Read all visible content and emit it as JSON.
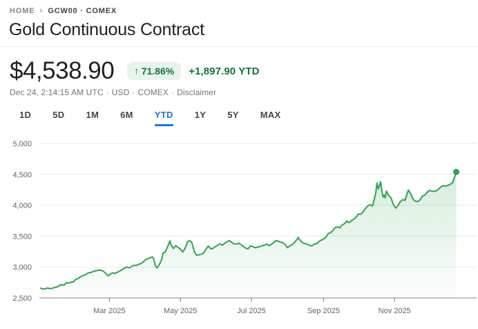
{
  "breadcrumb": {
    "home": "HOME",
    "chevron": "›",
    "symbol": "GCW00 · COMEX"
  },
  "title": "Gold Continuous Contract",
  "quote": {
    "price": "$4,538.90",
    "arrow": "↑",
    "percent_change": "71.86%",
    "absolute_change": "+1,897.90 YTD"
  },
  "meta": {
    "datetime": "Dec 24, 2:14:15 AM UTC",
    "separator": "·",
    "currency": "USD",
    "exchange": "COMEX",
    "disclaimer": "Disclaimer"
  },
  "tabs": {
    "selected": "YTD",
    "items": [
      {
        "label": "1D"
      },
      {
        "label": "5D"
      },
      {
        "label": "1M"
      },
      {
        "label": "6M"
      },
      {
        "label": "YTD"
      },
      {
        "label": "1Y"
      },
      {
        "label": "5Y"
      },
      {
        "label": "MAX"
      }
    ]
  },
  "colors": {
    "accent_blue": "#1a73e8",
    "line_green": "#2da44e",
    "badge_bg": "#e6f4ea",
    "badge_text": "#137333",
    "grid_light": "#e8eaed",
    "axis_dark": "#80868b",
    "axis_label": "#5f6368"
  },
  "chart_data": {
    "type": "area",
    "title": "Gold Continuous Contract price, year to date",
    "x_unit": "day_of_year_2025",
    "x_range_days": [
      1,
      358
    ],
    "x_tick_days": [
      60,
      121,
      182,
      244,
      305
    ],
    "x_tick_labels": [
      "Mar 2025",
      "May 2025",
      "Jul 2025",
      "Sep 2025",
      "Nov 2025"
    ],
    "y_ticks": [
      2500,
      3000,
      3500,
      4000,
      4500,
      5000
    ],
    "y_tick_labels": [
      "2,500",
      "3,000",
      "3,500",
      "4,000",
      "4,500",
      "5,000"
    ],
    "ylim": [
      2500,
      5000
    ],
    "grid": true,
    "legend": "none",
    "last_point": {
      "date": "Dec 24",
      "value": 4538.9
    },
    "points": [
      [
        1,
        2658
      ],
      [
        3,
        2642
      ],
      [
        5,
        2650
      ],
      [
        7,
        2662
      ],
      [
        9,
        2648
      ],
      [
        11,
        2656
      ],
      [
        13,
        2672
      ],
      [
        15,
        2678
      ],
      [
        17,
        2702
      ],
      [
        19,
        2715
      ],
      [
        21,
        2708
      ],
      [
        23,
        2748
      ],
      [
        25,
        2740
      ],
      [
        27,
        2754
      ],
      [
        29,
        2758
      ],
      [
        31,
        2800
      ],
      [
        33,
        2814
      ],
      [
        35,
        2840
      ],
      [
        37,
        2860
      ],
      [
        39,
        2872
      ],
      [
        41,
        2898
      ],
      [
        43,
        2908
      ],
      [
        45,
        2918
      ],
      [
        47,
        2934
      ],
      [
        49,
        2944
      ],
      [
        52,
        2952
      ],
      [
        54,
        2940
      ],
      [
        56,
        2914
      ],
      [
        58,
        2872
      ],
      [
        59,
        2858
      ],
      [
        61,
        2890
      ],
      [
        63,
        2906
      ],
      [
        65,
        2900
      ],
      [
        67,
        2918
      ],
      [
        69,
        2936
      ],
      [
        71,
        2960
      ],
      [
        73,
        2984
      ],
      [
        75,
        3000
      ],
      [
        77,
        2986
      ],
      [
        79,
        3012
      ],
      [
        81,
        3030
      ],
      [
        83,
        3024
      ],
      [
        85,
        3044
      ],
      [
        87,
        3056
      ],
      [
        89,
        3082
      ],
      [
        91,
        3118
      ],
      [
        93,
        3134
      ],
      [
        95,
        3152
      ],
      [
        97,
        3164
      ],
      [
        98,
        3136
      ],
      [
        99,
        3056
      ],
      [
        100,
        3002
      ],
      [
        101,
        2984
      ],
      [
        103,
        3046
      ],
      [
        105,
        3124
      ],
      [
        106,
        3226
      ],
      [
        108,
        3244
      ],
      [
        110,
        3330
      ],
      [
        112,
        3424
      ],
      [
        113,
        3354
      ],
      [
        115,
        3300
      ],
      [
        117,
        3346
      ],
      [
        119,
        3318
      ],
      [
        121,
        3290
      ],
      [
        123,
        3246
      ],
      [
        125,
        3300
      ],
      [
        127,
        3406
      ],
      [
        129,
        3430
      ],
      [
        131,
        3390
      ],
      [
        133,
        3244
      ],
      [
        135,
        3190
      ],
      [
        137,
        3200
      ],
      [
        139,
        3206
      ],
      [
        141,
        3230
      ],
      [
        143,
        3290
      ],
      [
        145,
        3342
      ],
      [
        147,
        3294
      ],
      [
        149,
        3304
      ],
      [
        151,
        3332
      ],
      [
        153,
        3354
      ],
      [
        155,
        3378
      ],
      [
        157,
        3354
      ],
      [
        159,
        3384
      ],
      [
        161,
        3410
      ],
      [
        163,
        3428
      ],
      [
        165,
        3400
      ],
      [
        167,
        3376
      ],
      [
        169,
        3372
      ],
      [
        171,
        3384
      ],
      [
        173,
        3366
      ],
      [
        175,
        3334
      ],
      [
        177,
        3308
      ],
      [
        179,
        3292
      ],
      [
        181,
        3340
      ],
      [
        183,
        3334
      ],
      [
        185,
        3314
      ],
      [
        187,
        3320
      ],
      [
        189,
        3330
      ],
      [
        191,
        3344
      ],
      [
        193,
        3354
      ],
      [
        195,
        3370
      ],
      [
        197,
        3346
      ],
      [
        199,
        3366
      ],
      [
        201,
        3392
      ],
      [
        203,
        3430
      ],
      [
        205,
        3420
      ],
      [
        207,
        3404
      ],
      [
        209,
        3394
      ],
      [
        211,
        3364
      ],
      [
        213,
        3314
      ],
      [
        215,
        3344
      ],
      [
        217,
        3360
      ],
      [
        219,
        3400
      ],
      [
        221,
        3442
      ],
      [
        222,
        3480
      ],
      [
        224,
        3430
      ],
      [
        226,
        3394
      ],
      [
        228,
        3380
      ],
      [
        230,
        3370
      ],
      [
        232,
        3350
      ],
      [
        234,
        3344
      ],
      [
        236,
        3370
      ],
      [
        238,
        3376
      ],
      [
        240,
        3414
      ],
      [
        242,
        3436
      ],
      [
        244,
        3452
      ],
      [
        246,
        3482
      ],
      [
        248,
        3542
      ],
      [
        250,
        3556
      ],
      [
        252,
        3590
      ],
      [
        254,
        3640
      ],
      [
        256,
        3648
      ],
      [
        258,
        3636
      ],
      [
        260,
        3684
      ],
      [
        262,
        3700
      ],
      [
        264,
        3744
      ],
      [
        266,
        3720
      ],
      [
        268,
        3752
      ],
      [
        270,
        3772
      ],
      [
        272,
        3810
      ],
      [
        274,
        3860
      ],
      [
        276,
        3854
      ],
      [
        278,
        3894
      ],
      [
        280,
        3950
      ],
      [
        282,
        3990
      ],
      [
        284,
        4010
      ],
      [
        286,
        3988
      ],
      [
        288,
        4130
      ],
      [
        289,
        4220
      ],
      [
        290,
        4360
      ],
      [
        291,
        4264
      ],
      [
        292,
        4314
      ],
      [
        293,
        4380
      ],
      [
        294,
        4244
      ],
      [
        295,
        4134
      ],
      [
        296,
        4164
      ],
      [
        297,
        4120
      ],
      [
        298,
        4230
      ],
      [
        300,
        4154
      ],
      [
        302,
        4120
      ],
      [
        304,
        4010
      ],
      [
        306,
        3954
      ],
      [
        308,
        4000
      ],
      [
        310,
        4060
      ],
      [
        312,
        4090
      ],
      [
        314,
        4080
      ],
      [
        316,
        4200
      ],
      [
        317,
        4246
      ],
      [
        319,
        4180
      ],
      [
        321,
        4094
      ],
      [
        323,
        4064
      ],
      [
        325,
        4060
      ],
      [
        327,
        4090
      ],
      [
        329,
        4150
      ],
      [
        331,
        4164
      ],
      [
        333,
        4210
      ],
      [
        335,
        4240
      ],
      [
        337,
        4230
      ],
      [
        339,
        4224
      ],
      [
        341,
        4234
      ],
      [
        343,
        4264
      ],
      [
        345,
        4300
      ],
      [
        347,
        4318
      ],
      [
        349,
        4310
      ],
      [
        351,
        4324
      ],
      [
        353,
        4340
      ],
      [
        355,
        4368
      ],
      [
        356,
        4430
      ],
      [
        357,
        4480
      ],
      [
        358,
        4538.9
      ]
    ]
  }
}
